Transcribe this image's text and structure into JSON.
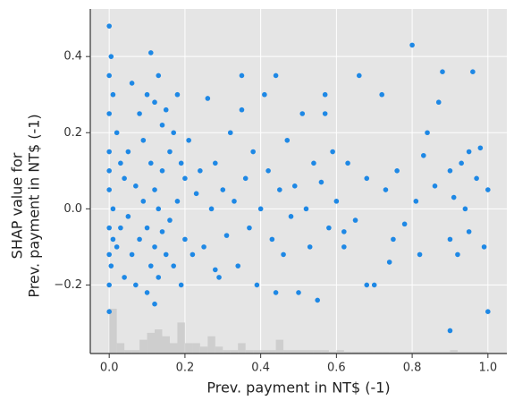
{
  "chart_data": {
    "type": "scatter",
    "xlabel": "Prev. payment in NT$ (-1)",
    "ylabel": [
      "SHAP value for",
      "Prev. payment in NT$ (-1)"
    ],
    "xlim": [
      -0.05,
      1.05
    ],
    "ylim": [
      -0.38,
      0.525
    ],
    "xticks": [
      {
        "value": 0,
        "label": "0.0"
      },
      0.2,
      0.4,
      0.6,
      0.8,
      {
        "value": 1,
        "label": "1.0"
      }
    ],
    "yticks": [
      {
        "value": -0.2,
        "label": "−0.2"
      },
      {
        "value": 0,
        "label": "0.0"
      },
      0.2,
      0.4
    ],
    "grid": true,
    "color": "#1e88e5",
    "histogram": {
      "color": "#c8c8c8",
      "bins": [
        0,
        0.02,
        0.04,
        0.06,
        0.08,
        0.1,
        0.12,
        0.14,
        0.16,
        0.18,
        0.2,
        0.22,
        0.24,
        0.26,
        0.28,
        0.3,
        0.32,
        0.34,
        0.36,
        0.38,
        0.4,
        0.42,
        0.44,
        0.46,
        0.48,
        0.5,
        0.52,
        0.54,
        0.56,
        0.58,
        0.6,
        0.62,
        0.64,
        0.66,
        0.68,
        0.7,
        0.72,
        0.74,
        0.76,
        0.78,
        0.8,
        0.82,
        0.84,
        0.86,
        0.88,
        0.9,
        0.92,
        0.94,
        0.96,
        0.98,
        1.0
      ],
      "counts": [
        0.13,
        0.03,
        0.01,
        0.01,
        0.04,
        0.06,
        0.07,
        0.05,
        0.03,
        0.09,
        0.03,
        0.03,
        0.02,
        0.05,
        0.02,
        0.01,
        0.01,
        0.03,
        0.01,
        0.01,
        0.01,
        0.01,
        0.04,
        0.01,
        0.01,
        0.01,
        0.01,
        0.01,
        0.01,
        0.005,
        0.01,
        0.005,
        0.005,
        0.005,
        0.005,
        0.005,
        0.005,
        0.005,
        0.005,
        0.005,
        0.005,
        0.005,
        0.005,
        0.005,
        0.005,
        0.01,
        0.005,
        0.005,
        0.005,
        0.005
      ]
    },
    "x": [
      0,
      0,
      0,
      0,
      0,
      0,
      0,
      0,
      0,
      0,
      0.005,
      0.005,
      0.01,
      0.01,
      0.01,
      0.02,
      0.02,
      0.03,
      0.03,
      0.04,
      0.04,
      0.05,
      0.05,
      0.06,
      0.06,
      0.07,
      0.07,
      0.08,
      0.08,
      0.09,
      0.09,
      0.1,
      0.1,
      0.1,
      0.11,
      0.11,
      0.11,
      0.12,
      0.12,
      0.12,
      0.12,
      0.13,
      0.13,
      0.13,
      0.14,
      0.14,
      0.14,
      0.15,
      0.15,
      0.16,
      0.16,
      0.17,
      0.17,
      0.18,
      0.18,
      0.19,
      0.19,
      0.2,
      0.2,
      0.21,
      0.22,
      0.23,
      0.24,
      0.25,
      0.26,
      0.27,
      0.28,
      0.29,
      0.3,
      0.31,
      0.32,
      0.33,
      0.34,
      0.35,
      0.36,
      0.37,
      0.38,
      0.39,
      0.4,
      0.41,
      0.42,
      0.43,
      0.44,
      0.45,
      0.46,
      0.47,
      0.48,
      0.49,
      0.5,
      0.51,
      0.52,
      0.53,
      0.54,
      0.55,
      0.56,
      0.57,
      0.58,
      0.59,
      0.6,
      0.62,
      0.63,
      0.65,
      0.66,
      0.68,
      0.7,
      0.72,
      0.73,
      0.75,
      0.76,
      0.78,
      0.8,
      0.81,
      0.82,
      0.84,
      0.86,
      0.88,
      0.9,
      0.9,
      0.9,
      0.91,
      0.92,
      0.93,
      0.94,
      0.95,
      0.96,
      0.97,
      0.98,
      0.99,
      1.0,
      1.0,
      0.83,
      0.68,
      0.35,
      0.44,
      0.57,
      0.28,
      0.62,
      0.74,
      0.87,
      0.95
    ],
    "y": [
      0.48,
      0.35,
      0.25,
      0.15,
      0.05,
      -0.05,
      -0.12,
      -0.2,
      -0.27,
      0.1,
      0.4,
      -0.15,
      0.3,
      0.0,
      -0.08,
      0.2,
      -0.1,
      0.12,
      -0.05,
      0.08,
      -0.18,
      0.15,
      -0.02,
      0.33,
      -0.12,
      0.06,
      -0.2,
      0.25,
      -0.08,
      0.18,
      0.02,
      0.3,
      -0.05,
      -0.22,
      0.41,
      0.12,
      -0.15,
      0.28,
      0.05,
      -0.1,
      -0.25,
      0.35,
      0.0,
      -0.18,
      0.22,
      -0.06,
      0.1,
      0.26,
      -0.12,
      0.15,
      -0.03,
      0.2,
      -0.15,
      0.3,
      0.02,
      0.12,
      -0.2,
      0.08,
      -0.08,
      0.18,
      -0.12,
      0.04,
      0.1,
      -0.1,
      0.29,
      0.0,
      0.12,
      -0.18,
      0.05,
      -0.07,
      0.2,
      0.02,
      -0.15,
      0.35,
      0.08,
      -0.05,
      0.15,
      -0.2,
      0.0,
      0.3,
      0.1,
      -0.08,
      0.35,
      0.05,
      -0.12,
      0.18,
      -0.02,
      0.06,
      -0.22,
      0.25,
      0.0,
      -0.1,
      0.12,
      -0.24,
      0.07,
      0.3,
      -0.05,
      0.15,
      0.02,
      -0.1,
      0.12,
      -0.03,
      0.35,
      0.08,
      -0.2,
      0.3,
      0.05,
      -0.08,
      0.1,
      -0.04,
      0.43,
      0.02,
      -0.12,
      0.2,
      0.06,
      0.36,
      0.1,
      -0.32,
      -0.08,
      0.03,
      -0.12,
      0.12,
      0.0,
      -0.06,
      0.36,
      0.08,
      0.16,
      -0.1,
      -0.27,
      0.05,
      0.14,
      -0.2,
      0.26,
      -0.22,
      0.25,
      -0.16,
      -0.06,
      -0.14,
      0.28,
      0.15
    ]
  }
}
